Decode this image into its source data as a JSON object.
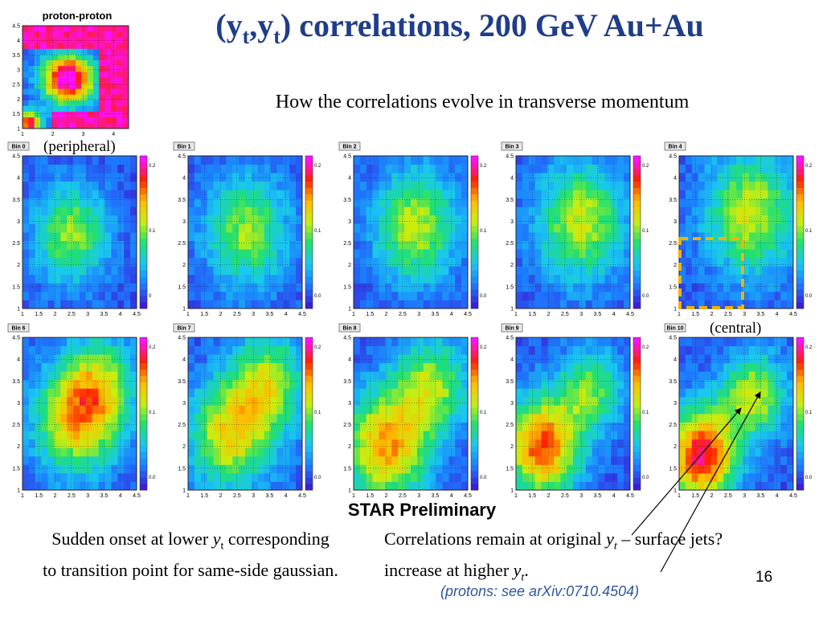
{
  "slide": {
    "title_y": "y",
    "title_t": "t",
    "title_rest": ") correlations, 200 GeV Au+Au",
    "subtitle": "How the correlations evolve in transverse momentum",
    "pp_title": "proton-proton",
    "peripheral_label": "(peripheral)",
    "central_label": "(central)",
    "star_label": "STAR Preliminary",
    "left_note_a": "Sudden onset at lower ",
    "left_note_y": "y",
    "left_note_t": "t",
    "left_note_b": " corresponding",
    "left_note_line2": "to transition point for same-side gaussian.",
    "right_note_a": "Correlations remain at original ",
    "right_note_y": "y",
    "right_note_t": "t",
    "right_note_b": " – surface jets?",
    "right_note_line2a": "increase at higher ",
    "right_note_line2y": "y",
    "right_note_line2t": "t",
    "right_note_line2c": ".",
    "page_number": "16",
    "reference": "(protons: see arXiv:0710.4504)"
  },
  "chart_data": {
    "type": "heatmap",
    "panels": [
      {
        "name": "pp",
        "title": "proton-proton",
        "xticks": [
          "1",
          "2",
          "3",
          "4"
        ],
        "yticks": [
          "1",
          "1.5",
          "2",
          "2.5",
          "3",
          "3.5",
          "4",
          "4.5"
        ],
        "peaks": [
          {
            "x": 2.5,
            "y": 2.7,
            "amp": 1.0,
            "s": 0.6
          },
          {
            "x": 1.2,
            "y": 1.2,
            "amp": 0.85,
            "s": 0.3
          }
        ]
      },
      {
        "name": "Bin 0",
        "title": "Bin 0",
        "xticks": [
          "1",
          "1.5",
          "2",
          "2.5",
          "3",
          "3.5",
          "4",
          "4.5"
        ],
        "yticks": [
          "1",
          "1.5",
          "2",
          "2.5",
          "3",
          "3.5",
          "4",
          "4.5"
        ],
        "cticks": [
          "0.2",
          "0.1",
          "0"
        ],
        "peaks": [
          {
            "x": 2.5,
            "y": 2.7,
            "amp": 0.45,
            "s": 0.8
          }
        ]
      },
      {
        "name": "Bin 1",
        "title": "Bin 1",
        "xticks": [
          "1",
          "1.5",
          "2",
          "2.5",
          "3",
          "3.5",
          "4",
          "4.5"
        ],
        "yticks": [
          "1",
          "1.5",
          "2",
          "2.5",
          "3",
          "3.5",
          "4",
          "4.5"
        ],
        "cticks": [
          "0.2",
          "0.1",
          "0.0"
        ],
        "peaks": [
          {
            "x": 2.8,
            "y": 2.8,
            "amp": 0.45,
            "s": 0.9
          }
        ]
      },
      {
        "name": "Bin 2",
        "title": "Bin 2",
        "xticks": [
          "1",
          "1.5",
          "2",
          "2.5",
          "3",
          "3.5",
          "4",
          "4.5"
        ],
        "yticks": [
          "1",
          "1.5",
          "2",
          "2.5",
          "3",
          "3.5",
          "4",
          "4.5"
        ],
        "cticks": [
          "0.2",
          "0.1",
          "0.0"
        ],
        "peaks": [
          {
            "x": 2.9,
            "y": 2.9,
            "amp": 0.5,
            "s": 0.9
          }
        ]
      },
      {
        "name": "Bin 3",
        "title": "Bin 3",
        "xticks": [
          "1",
          "1.5",
          "2",
          "2.5",
          "3",
          "3.5",
          "4",
          "4.5"
        ],
        "yticks": [
          "1",
          "1.5",
          "2",
          "2.5",
          "3",
          "3.5",
          "4",
          "4.5"
        ],
        "cticks": [
          "0.2",
          "0.1",
          "0.0"
        ],
        "peaks": [
          {
            "x": 3.0,
            "y": 3.0,
            "amp": 0.5,
            "s": 0.95
          }
        ]
      },
      {
        "name": "Bin 4",
        "title": "Bin 4",
        "xticks": [
          "1",
          "1.5",
          "2",
          "2.5",
          "3",
          "3.5",
          "4",
          "4.5"
        ],
        "yticks": [
          "1",
          "1.5",
          "2",
          "2.5",
          "3",
          "3.5",
          "4",
          "4.5"
        ],
        "cticks": [
          "0.2",
          "0.1",
          "0.0"
        ],
        "peaks": [
          {
            "x": 3.2,
            "y": 3.2,
            "amp": 0.5,
            "s": 1.0
          }
        ]
      },
      {
        "name": "Bin 6",
        "title": "Bin 6",
        "xticks": [
          "1",
          "1.5",
          "2",
          "2.5",
          "3",
          "3.5",
          "4",
          "4.5"
        ],
        "yticks": [
          "1",
          "1.5",
          "2",
          "2.5",
          "3",
          "3.5",
          "4",
          "4.5"
        ],
        "cticks": [
          "0.2",
          "0.1",
          "0.0"
        ],
        "peaks": [
          {
            "x": 2.6,
            "y": 2.6,
            "amp": 0.55,
            "s": 0.9
          },
          {
            "x": 3.4,
            "y": 3.4,
            "amp": 0.4,
            "s": 0.8
          }
        ]
      },
      {
        "name": "Bin 7",
        "title": "Bin 7",
        "xticks": [
          "1",
          "1.5",
          "2",
          "2.5",
          "3",
          "3.5",
          "4",
          "4.5"
        ],
        "yticks": [
          "1",
          "1.5",
          "2",
          "2.5",
          "3",
          "3.5",
          "4",
          "4.5"
        ],
        "cticks": [
          "0.2",
          "0.1",
          "0.0"
        ],
        "peaks": [
          {
            "x": 2.3,
            "y": 2.3,
            "amp": 0.55,
            "s": 0.9
          },
          {
            "x": 3.5,
            "y": 3.5,
            "amp": 0.45,
            "s": 0.8
          }
        ]
      },
      {
        "name": "Bin 8",
        "title": "Bin 8",
        "xticks": [
          "1",
          "1.5",
          "2",
          "2.5",
          "3",
          "3.5",
          "4",
          "4.5"
        ],
        "yticks": [
          "1",
          "1.5",
          "2",
          "2.5",
          "3",
          "3.5",
          "4",
          "4.5"
        ],
        "cticks": [
          "0.2",
          "0.1",
          "0.0"
        ],
        "peaks": [
          {
            "x": 2.0,
            "y": 2.0,
            "amp": 0.65,
            "s": 0.9
          },
          {
            "x": 3.4,
            "y": 3.4,
            "amp": 0.45,
            "s": 0.8
          }
        ]
      },
      {
        "name": "Bin 9",
        "title": "Bin 9",
        "xticks": [
          "1",
          "1.5",
          "2",
          "2.5",
          "3",
          "3.5",
          "4",
          "4.5"
        ],
        "yticks": [
          "1",
          "1.5",
          "2",
          "2.5",
          "3",
          "3.5",
          "4",
          "4.5"
        ],
        "cticks": [
          "0.2",
          "0.1",
          "0.0"
        ],
        "peaks": [
          {
            "x": 1.8,
            "y": 2.0,
            "amp": 0.75,
            "s": 0.8
          },
          {
            "x": 3.3,
            "y": 3.3,
            "amp": 0.4,
            "s": 0.7
          }
        ]
      },
      {
        "name": "Bin 10",
        "title": "Bin 10",
        "xticks": [
          "1",
          "1.5",
          "2",
          "2.5",
          "3",
          "3.5",
          "4",
          "4.5"
        ],
        "yticks": [
          "1",
          "1.5",
          "2",
          "2.5",
          "3",
          "3.5",
          "4",
          "4.5"
        ],
        "cticks": [
          "0.2",
          "0.1",
          "0.0"
        ],
        "peaks": [
          {
            "x": 1.7,
            "y": 1.8,
            "amp": 0.85,
            "s": 0.75
          },
          {
            "x": 3.3,
            "y": 3.2,
            "amp": 0.5,
            "s": 0.7
          }
        ]
      }
    ],
    "colormap": [
      "#3a1fd8",
      "#1d7bff",
      "#19c8f0",
      "#20e070",
      "#c8ee10",
      "#ffbb00",
      "#ff2000",
      "#ff10ff"
    ]
  }
}
